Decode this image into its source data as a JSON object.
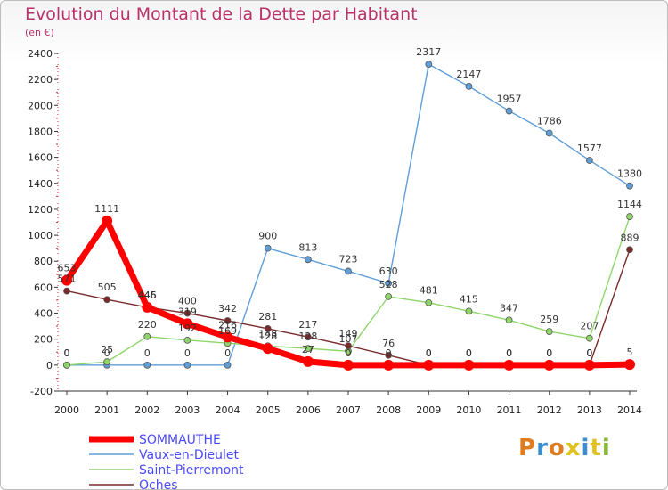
{
  "page": {
    "title": "Evolution du Montant de la Dette par Habitant",
    "subtitle": "(en €)"
  },
  "brand": {
    "letters": [
      "P",
      "r",
      "o",
      "x",
      "i",
      "t",
      "i"
    ],
    "colors": [
      "#e07b1e",
      "#3a8fd0",
      "#e07b1e",
      "#e0c11e",
      "#3a8fd0",
      "#e0c11e",
      "#8ab83a"
    ]
  },
  "chart_data": {
    "type": "line",
    "title": "Evolution du Montant de la Dette par Habitant",
    "ylabel": "(en €)",
    "xlabel": "",
    "categories": [
      "2000",
      "2001",
      "2002",
      "2003",
      "2004",
      "2005",
      "2006",
      "2007",
      "2008",
      "2009",
      "2010",
      "2011",
      "2012",
      "2013",
      "2014"
    ],
    "ylim": [
      -200,
      2400
    ],
    "yticks": [
      -200,
      0,
      200,
      400,
      600,
      800,
      1000,
      1200,
      1400,
      1600,
      1800,
      2000,
      2200,
      2400
    ],
    "grid": false,
    "legend_placement": "bottom-left",
    "series": [
      {
        "name": "SOMMAUTHE",
        "color": "#ff0000",
        "values": [
          653,
          1111,
          446,
          319,
          216,
          128,
          27,
          0,
          0,
          0,
          0,
          0,
          0,
          0,
          5
        ],
        "labels": [
          "653",
          "1111",
          "446",
          "319",
          "216",
          "128",
          "27",
          "0",
          "0",
          "0",
          "0",
          "0",
          "0",
          "0",
          "5"
        ],
        "thick": true
      },
      {
        "name": "Vaux-en-Dieulet",
        "color": "#5f9ed8",
        "values": [
          0,
          0,
          0,
          0,
          0,
          900,
          813,
          723,
          630,
          2317,
          2147,
          1957,
          1786,
          1577,
          1380
        ],
        "labels": [
          "0",
          "0",
          "0",
          "0",
          "0",
          "900",
          "813",
          "723",
          "630",
          "2317",
          "2147",
          "1957",
          "1786",
          "1577",
          "1380"
        ]
      },
      {
        "name": "Saint-Pierremont",
        "color": "#8fd66a",
        "values": [
          0,
          25,
          220,
          192,
          169,
          148,
          128,
          107,
          528,
          481,
          415,
          347,
          259,
          207,
          1144
        ],
        "labels": [
          "0",
          "25",
          "220",
          "192",
          "169",
          "148",
          "128",
          "107",
          "528",
          "481",
          "415",
          "347",
          "259",
          "207",
          "1144"
        ]
      },
      {
        "name": "Oches",
        "color": "#7a2a2a",
        "values": [
          571,
          505,
          445,
          400,
          342,
          281,
          217,
          149,
          76,
          0,
          0,
          0,
          0,
          0,
          889
        ],
        "labels": [
          "571",
          "505",
          "445",
          "400",
          "342",
          "281",
          "217",
          "149",
          "76",
          "0",
          "0",
          "0",
          "0",
          "0",
          "889"
        ]
      }
    ],
    "legend_text_color": "#4a4aff"
  }
}
